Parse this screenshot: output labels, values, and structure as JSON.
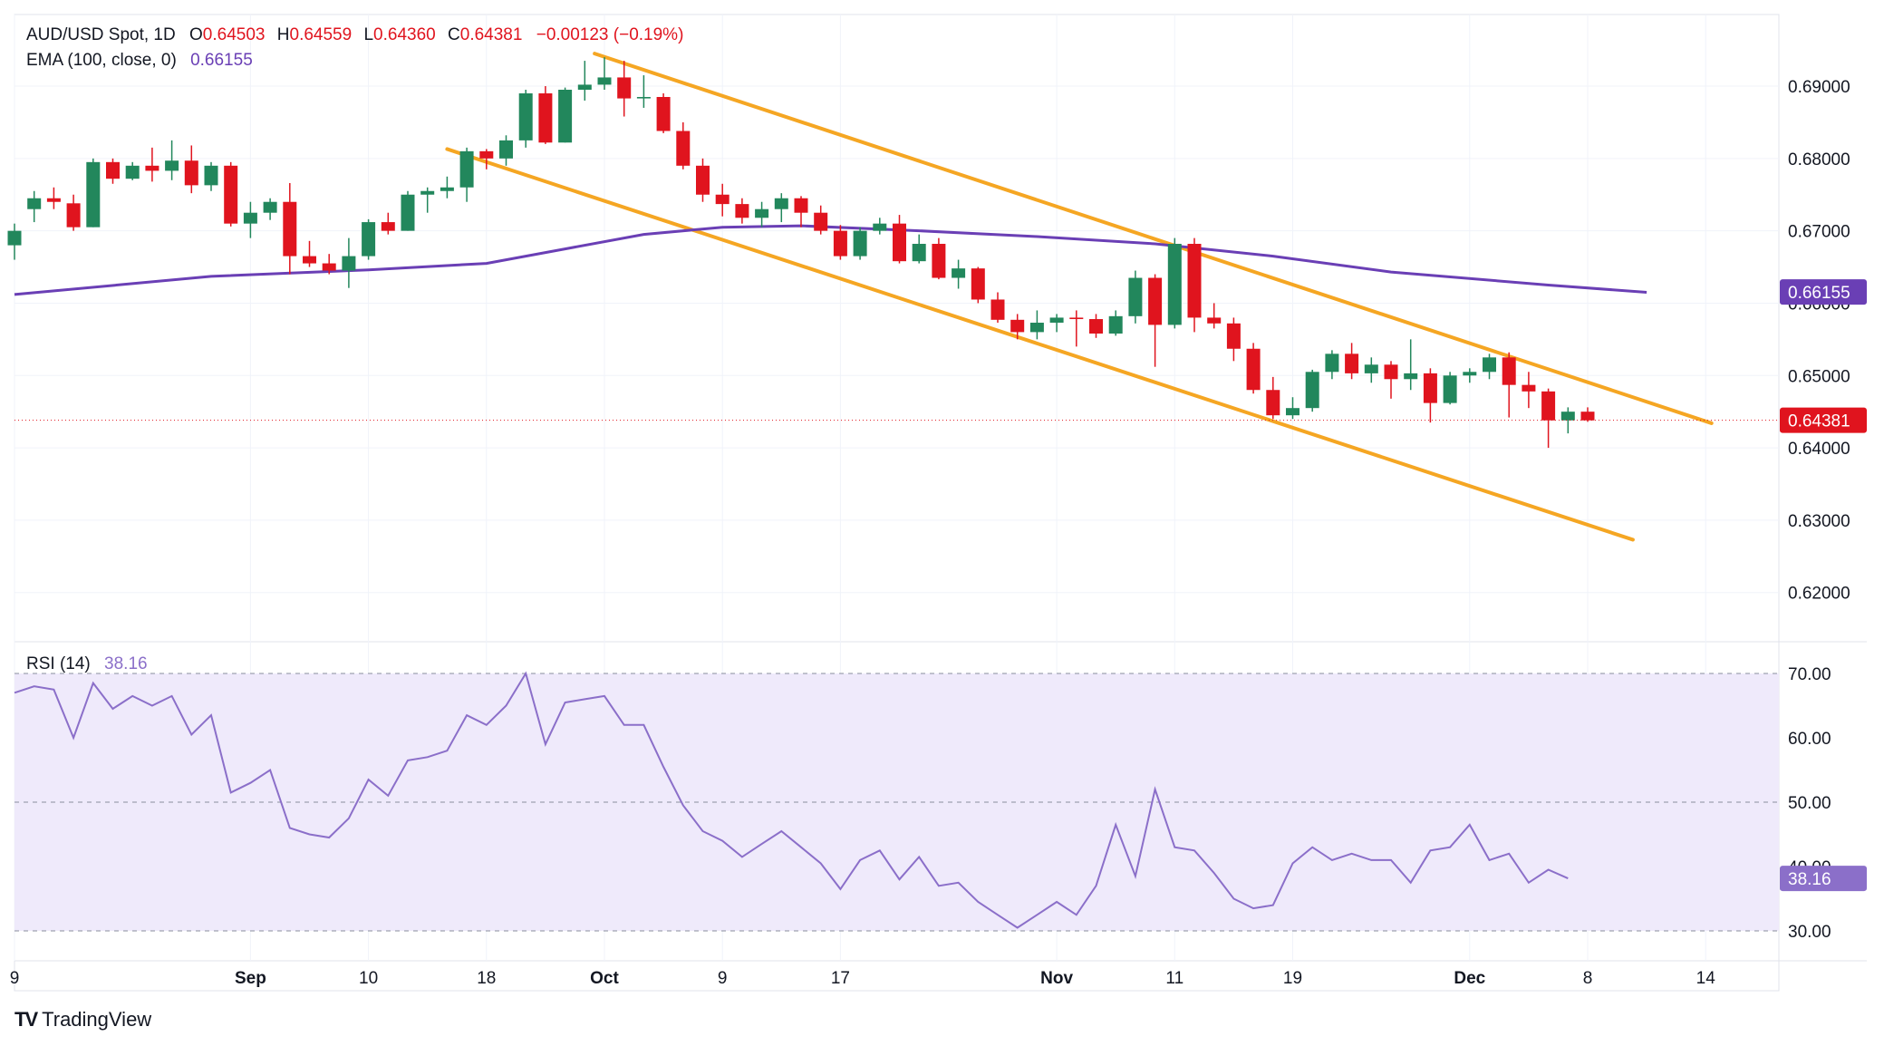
{
  "header": {
    "symbol": "AUD/USD Spot, 1D",
    "open_label": "O",
    "open": "0.64503",
    "high_label": "H",
    "high": "0.64559",
    "low_label": "L",
    "low": "0.64360",
    "close_label": "C",
    "close": "0.64381",
    "change": "−0.00123 (−0.19%)",
    "ema_label": "EMA (100, close, 0)",
    "ema_value": "0.66155",
    "rsi_label": "RSI (14)",
    "rsi_value": "38.16"
  },
  "brand": {
    "name": "TradingView"
  },
  "colors": {
    "up": "#22875c",
    "down": "#e0141e",
    "ema": "#6a3fb5",
    "channel": "#f5a623",
    "rsi": "#8b6fc9",
    "rsi_band": "#efeafb",
    "grid": "#f0f3fa",
    "text": "#131722"
  },
  "chart_data": [
    {
      "type": "candlestick",
      "title": "AUD/USD Spot, 1D",
      "price_axis_ticks": [
        "0.69000",
        "0.68000",
        "0.67000",
        "0.66000",
        "0.65000",
        "0.64000",
        "0.63000",
        "0.62000"
      ],
      "ylim": [
        0.6132,
        0.6999
      ],
      "time_axis_labels": [
        {
          "label": "9",
          "bar": 0
        },
        {
          "label": "Sep",
          "bar": 12
        },
        {
          "label": "10",
          "bar": 18
        },
        {
          "label": "18",
          "bar": 24
        },
        {
          "label": "Oct",
          "bar": 30
        },
        {
          "label": "9",
          "bar": 36
        },
        {
          "label": "17",
          "bar": 42
        },
        {
          "label": "Nov",
          "bar": 53
        },
        {
          "label": "11",
          "bar": 59
        },
        {
          "label": "19",
          "bar": 65
        },
        {
          "label": "Dec",
          "bar": 74
        },
        {
          "label": "8",
          "bar": 80
        },
        {
          "label": "14",
          "bar": 86
        }
      ],
      "bold_time_labels": [
        "Sep",
        "Oct",
        "Nov",
        "Dec"
      ],
      "candles": [
        [
          0.668,
          0.671,
          0.666,
          0.67
        ],
        [
          0.673,
          0.6755,
          0.6712,
          0.6745
        ],
        [
          0.6745,
          0.676,
          0.673,
          0.674
        ],
        [
          0.6738,
          0.675,
          0.67,
          0.6705
        ],
        [
          0.6705,
          0.68,
          0.6705,
          0.6795
        ],
        [
          0.6795,
          0.68,
          0.6765,
          0.6772
        ],
        [
          0.6772,
          0.6795,
          0.677,
          0.679
        ],
        [
          0.679,
          0.6815,
          0.6768,
          0.6783
        ],
        [
          0.6783,
          0.6825,
          0.677,
          0.6797
        ],
        [
          0.6797,
          0.6818,
          0.6752,
          0.6763
        ],
        [
          0.6763,
          0.6795,
          0.6755,
          0.679
        ],
        [
          0.679,
          0.6795,
          0.6706,
          0.671
        ],
        [
          0.671,
          0.674,
          0.669,
          0.6725
        ],
        [
          0.6725,
          0.6745,
          0.6715,
          0.674
        ],
        [
          0.674,
          0.6766,
          0.664,
          0.6665
        ],
        [
          0.6665,
          0.6686,
          0.665,
          0.6655
        ],
        [
          0.6655,
          0.6668,
          0.664,
          0.6645
        ],
        [
          0.6645,
          0.669,
          0.6621,
          0.6665
        ],
        [
          0.6665,
          0.6716,
          0.666,
          0.6712
        ],
        [
          0.6712,
          0.6725,
          0.6695,
          0.67
        ],
        [
          0.67,
          0.6755,
          0.67,
          0.675
        ],
        [
          0.675,
          0.676,
          0.6725,
          0.6755
        ],
        [
          0.6755,
          0.6775,
          0.6745,
          0.676
        ],
        [
          0.676,
          0.6815,
          0.674,
          0.681
        ],
        [
          0.681,
          0.6813,
          0.6785,
          0.68
        ],
        [
          0.68,
          0.6832,
          0.679,
          0.6825
        ],
        [
          0.6825,
          0.6895,
          0.6815,
          0.689
        ],
        [
          0.689,
          0.69,
          0.682,
          0.6822
        ],
        [
          0.6822,
          0.6898,
          0.6822,
          0.6895
        ],
        [
          0.6895,
          0.6935,
          0.688,
          0.6902
        ],
        [
          0.6902,
          0.694,
          0.6895,
          0.6912
        ],
        [
          0.6912,
          0.6935,
          0.6858,
          0.6883
        ],
        [
          0.6883,
          0.6915,
          0.687,
          0.6885
        ],
        [
          0.6885,
          0.689,
          0.6835,
          0.6838
        ],
        [
          0.6838,
          0.685,
          0.6785,
          0.679
        ],
        [
          0.679,
          0.68,
          0.674,
          0.675
        ],
        [
          0.675,
          0.6765,
          0.672,
          0.6737
        ],
        [
          0.6737,
          0.6745,
          0.671,
          0.6718
        ],
        [
          0.6718,
          0.674,
          0.6705,
          0.673
        ],
        [
          0.673,
          0.6752,
          0.6712,
          0.6745
        ],
        [
          0.6745,
          0.6748,
          0.6705,
          0.6725
        ],
        [
          0.6725,
          0.6735,
          0.6695,
          0.67
        ],
        [
          0.67,
          0.6708,
          0.666,
          0.6665
        ],
        [
          0.6665,
          0.6705,
          0.666,
          0.67
        ],
        [
          0.67,
          0.6718,
          0.6695,
          0.671
        ],
        [
          0.671,
          0.6722,
          0.6655,
          0.6658
        ],
        [
          0.6658,
          0.6695,
          0.6655,
          0.6682
        ],
        [
          0.6682,
          0.669,
          0.6633,
          0.6635
        ],
        [
          0.6635,
          0.666,
          0.662,
          0.6648
        ],
        [
          0.6648,
          0.665,
          0.66,
          0.6605
        ],
        [
          0.6605,
          0.6615,
          0.6573,
          0.6577
        ],
        [
          0.6577,
          0.6585,
          0.655,
          0.656
        ],
        [
          0.656,
          0.659,
          0.655,
          0.6573
        ],
        [
          0.6573,
          0.6585,
          0.656,
          0.658
        ],
        [
          0.658,
          0.659,
          0.654,
          0.6578
        ],
        [
          0.6578,
          0.6585,
          0.6552,
          0.6558
        ],
        [
          0.6558,
          0.659,
          0.6555,
          0.6582
        ],
        [
          0.6582,
          0.6645,
          0.6572,
          0.6635
        ],
        [
          0.6635,
          0.664,
          0.6512,
          0.657
        ],
        [
          0.657,
          0.669,
          0.6565,
          0.6682
        ],
        [
          0.6682,
          0.669,
          0.656,
          0.658
        ],
        [
          0.658,
          0.66,
          0.6565,
          0.6572
        ],
        [
          0.6572,
          0.658,
          0.652,
          0.6537
        ],
        [
          0.6537,
          0.6545,
          0.6475,
          0.648
        ],
        [
          0.648,
          0.6498,
          0.644,
          0.6445
        ],
        [
          0.6445,
          0.647,
          0.644,
          0.6455
        ],
        [
          0.6455,
          0.6508,
          0.645,
          0.6505
        ],
        [
          0.6505,
          0.6535,
          0.6495,
          0.653
        ],
        [
          0.653,
          0.6545,
          0.6495,
          0.6503
        ],
        [
          0.6503,
          0.6525,
          0.649,
          0.6515
        ],
        [
          0.6515,
          0.652,
          0.6468,
          0.6495
        ],
        [
          0.6495,
          0.655,
          0.648,
          0.6503
        ],
        [
          0.6503,
          0.651,
          0.6435,
          0.6462
        ],
        [
          0.6462,
          0.6505,
          0.646,
          0.65
        ],
        [
          0.65,
          0.651,
          0.649,
          0.6505
        ],
        [
          0.6505,
          0.653,
          0.6495,
          0.6525
        ],
        [
          0.6525,
          0.6532,
          0.6442,
          0.6487
        ],
        [
          0.6487,
          0.6505,
          0.6455,
          0.6478
        ],
        [
          0.6478,
          0.6482,
          0.64,
          0.6438
        ],
        [
          0.6438,
          0.6456,
          0.642,
          0.645
        ],
        [
          0.645,
          0.6456,
          0.6436,
          0.6438
        ]
      ],
      "ema_100": {
        "name": "EMA (100, close, 0)",
        "points": [
          [
            0,
            0.6612
          ],
          [
            10,
            0.6637
          ],
          [
            18,
            0.6646
          ],
          [
            24,
            0.6655
          ],
          [
            28,
            0.6675
          ],
          [
            32,
            0.6695
          ],
          [
            36,
            0.6705
          ],
          [
            40,
            0.6707
          ],
          [
            46,
            0.67
          ],
          [
            52,
            0.6692
          ],
          [
            58,
            0.6682
          ],
          [
            64,
            0.6665
          ],
          [
            70,
            0.6643
          ],
          [
            78,
            0.6625
          ],
          [
            83,
            0.6615
          ]
        ]
      },
      "channel_lines": [
        {
          "from": [
            29.5,
            0.6945
          ],
          "to": [
            86.3,
            0.6434
          ]
        },
        {
          "from": [
            22,
            0.6813
          ],
          "to": [
            82.3,
            0.6273
          ]
        }
      ],
      "last_price": "0.64381",
      "last_price_value": 0.64381,
      "ema_last": "0.66155",
      "ema_last_value": 0.66155
    },
    {
      "type": "line",
      "title": "RSI (14)",
      "ticks": [
        "70.00",
        "60.00",
        "50.00",
        "40.00",
        "30.00"
      ],
      "ylim": [
        29.8,
        70.2
      ],
      "levels": [
        70,
        50,
        30
      ],
      "value": "38.16",
      "value_num": 38.16,
      "series": [
        {
          "values": [
            67,
            68,
            67.5,
            60,
            68.5,
            64.5,
            66.5,
            65,
            66.5,
            60.5,
            63.5,
            51.5,
            53,
            55,
            46,
            45,
            44.5,
            47.5,
            53.5,
            51,
            56.5,
            57,
            58,
            63.5,
            62,
            65,
            70,
            59,
            65.5,
            66,
            66.5,
            62,
            62,
            55.5,
            49.5,
            45.5,
            44,
            41.5,
            43.5,
            45.5,
            43,
            40.5,
            36.5,
            41,
            42.5,
            38,
            41.5,
            37,
            37.5,
            34.5,
            32.5,
            30.5,
            32.5,
            34.5,
            32.5,
            37,
            46.5,
            38.5,
            52,
            43,
            42.5,
            39,
            35,
            33.5,
            34,
            40.5,
            43,
            41,
            42,
            41,
            41,
            37.5,
            42.5,
            43,
            46.5,
            41,
            42,
            37.5,
            39.5,
            38.16
          ]
        }
      ]
    }
  ]
}
